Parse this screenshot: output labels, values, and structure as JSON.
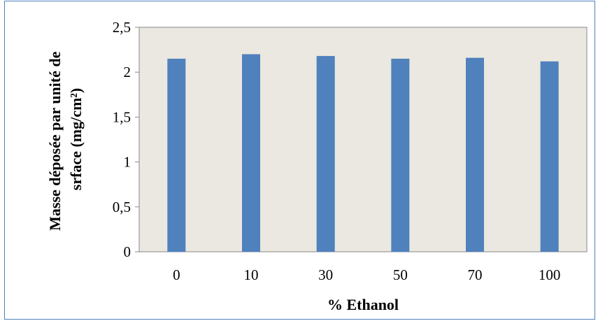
{
  "chart_data": {
    "type": "bar",
    "categories": [
      "0",
      "10",
      "30",
      "50",
      "70",
      "100"
    ],
    "values": [
      2.15,
      2.2,
      2.18,
      2.15,
      2.16,
      2.12
    ],
    "xlabel": "% Ethanol",
    "ylabel_lines": [
      "Masse déposée par unité de",
      "srface (mg/cm²)"
    ],
    "ylim": [
      0,
      2.5
    ],
    "yticks": [
      "0",
      "0,5",
      "1",
      "1,5",
      "2",
      "2,5"
    ],
    "ytick_values": [
      0,
      0.5,
      1,
      1.5,
      2,
      2.5
    ],
    "grid": false,
    "legend": "none",
    "colors": {
      "bar": "#4f81bd",
      "plot_background": "#eae8e0",
      "frame": "#4f81bd"
    }
  }
}
